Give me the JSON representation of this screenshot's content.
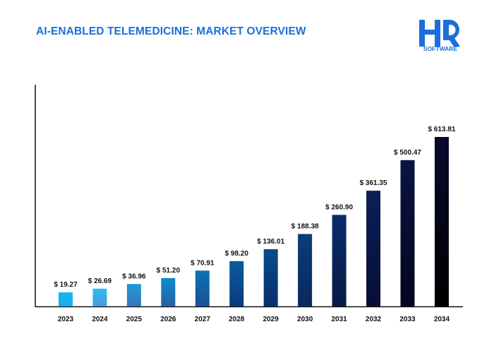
{
  "chart_data": {
    "type": "bar",
    "title": "AI-ENABLED TELEMEDICINE: MARKET OVERVIEW",
    "categories": [
      "2023",
      "2024",
      "2025",
      "2026",
      "2027",
      "2028",
      "2029",
      "2030",
      "2031",
      "2032",
      "2033",
      "2034"
    ],
    "values": [
      19.27,
      26.69,
      36.96,
      51.2,
      70.91,
      98.2,
      136.01,
      188.38,
      260.9,
      361.35,
      500.47,
      613.81
    ],
    "data_labels": [
      "$ 19.27",
      "$ 26.69",
      "$ 36.96",
      "$ 51.20",
      "$ 70.91",
      "$ 98.20",
      "$ 136.01",
      "$ 188.38",
      "$ 260.90",
      "$ 361.35",
      "$ 500.47",
      "$ 613.81"
    ],
    "xlabel": "",
    "ylabel": "",
    "grid": false,
    "legend": "none",
    "bar_colors": [
      [
        "#16b4f2",
        "#16b0ee"
      ],
      [
        "#2cbcf2",
        "#4b98dc"
      ],
      [
        "#1a9cd8",
        "#3a74bc"
      ],
      [
        "#0a8ccd",
        "#2a5ea6"
      ],
      [
        "#0a74b4",
        "#1c4f96"
      ],
      [
        "#095c9e",
        "#0a3a7e"
      ],
      [
        "#084c8a",
        "#082f6c"
      ],
      [
        "#0a3c7a",
        "#0a285c"
      ],
      [
        "#0a2c6a",
        "#081a46"
      ],
      [
        "#0a2058",
        "#070e36"
      ],
      [
        "#0a1442",
        "#04061e"
      ],
      [
        "#080a2c",
        "#000000"
      ]
    ]
  },
  "brand": {
    "logo_text": "HQ",
    "logo_subtitle": "SOFTWARE",
    "color": "#1a6fdb"
  }
}
